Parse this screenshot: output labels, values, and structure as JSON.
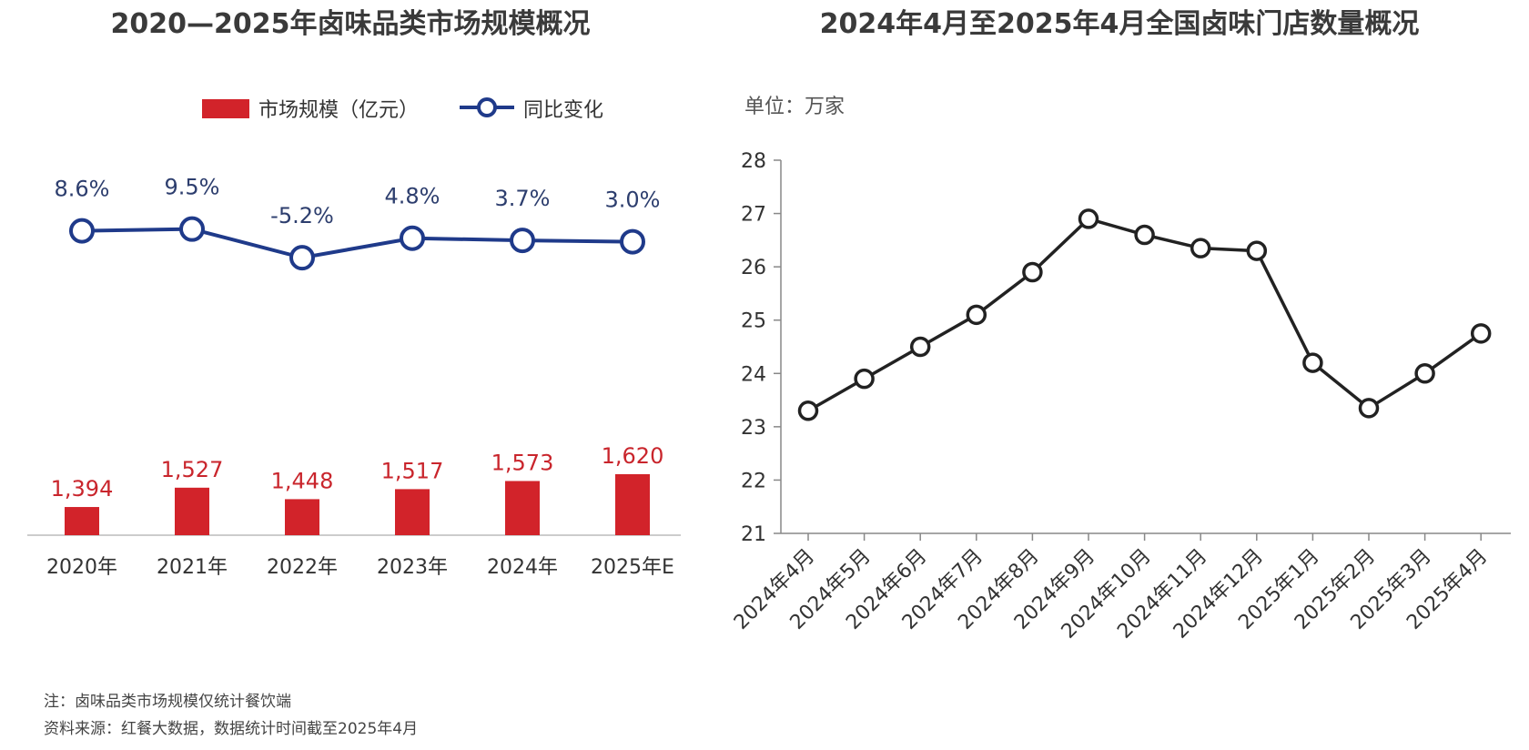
{
  "chart_data": [
    {
      "type": "bar",
      "title": "2020—2025年卤味品类市场规模概况",
      "categories": [
        "2020年",
        "2021年",
        "2022年",
        "2023年",
        "2024年",
        "2025年E"
      ],
      "series": [
        {
          "name": "市场规模（亿元）",
          "type": "bar",
          "color": "#d2232a",
          "values": [
            1394,
            1527,
            1448,
            1517,
            1573,
            1620
          ],
          "labels": [
            "1,394",
            "1,527",
            "1,448",
            "1,517",
            "1,573",
            "1,620"
          ]
        },
        {
          "name": "同比变化",
          "type": "line",
          "color": "#1f3a8a",
          "values": [
            8.6,
            9.5,
            -5.2,
            4.8,
            3.7,
            3.0
          ],
          "labels": [
            "8.6%",
            "9.5%",
            "-5.2%",
            "4.8%",
            "3.7%",
            "3.0%"
          ]
        }
      ]
    },
    {
      "type": "line",
      "title": "2024年4月至2025年4月全国卤味门店数量概况",
      "unit_label": "单位：万家",
      "categories": [
        "2024年4月",
        "2024年5月",
        "2024年6月",
        "2024年7月",
        "2024年8月",
        "2024年9月",
        "2024年10月",
        "2024年11月",
        "2024年12月",
        "2025年1月",
        "2025年2月",
        "2025年3月",
        "2025年4月"
      ],
      "values": [
        23.3,
        23.9,
        24.5,
        25.1,
        25.9,
        26.9,
        26.6,
        26.35,
        26.3,
        24.2,
        23.35,
        24.0,
        24.75
      ],
      "ylim": [
        21,
        28
      ],
      "yticks": [
        21,
        22,
        23,
        24,
        25,
        26,
        27,
        28
      ],
      "color": "#222222"
    }
  ],
  "notes": [
    "注：卤味品类市场规模仅统计餐饮端",
    "资料来源：红餐大数据，数据统计时间截至2025年4月"
  ]
}
